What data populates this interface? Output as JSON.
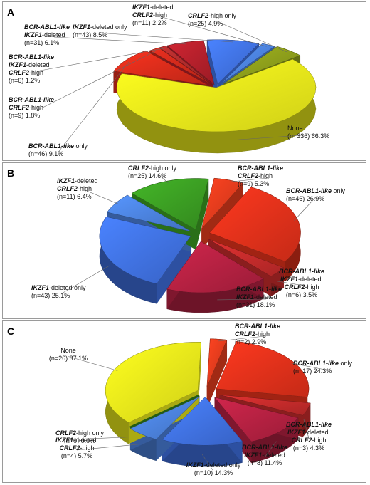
{
  "chart_data": [
    {
      "panel": "A",
      "type": "pie",
      "slices": [
        {
          "label": "None",
          "n": "(n=336)",
          "pct": "66.3%",
          "value": 66.3,
          "color": "#ecec1a"
        },
        {
          "label": "BCR-ABL1-like only",
          "n": "(n=46)",
          "pct": "9.1%",
          "value": 9.1,
          "color": "#d42b1a"
        },
        {
          "label": "BCR-ABL1-like CRLF2-high",
          "n": "(n=9)",
          "pct": "1.8%",
          "value": 1.8,
          "color": "#c8281a"
        },
        {
          "label": "BCR-ABL1-like IKZF1-deleted CRLF2-high",
          "n": "(n=6)",
          "pct": "1.2%",
          "value": 1.2,
          "color": "#a82a2a"
        },
        {
          "label": "BCR-ABL1-like IKZF1-deleted",
          "n": "(n=31)",
          "pct": "6.1%",
          "value": 6.1,
          "color": "#b01f2a"
        },
        {
          "label": "IKZF1-deleted only",
          "n": "(n=43)",
          "pct": "8.5%",
          "value": 8.5,
          "color": "#3f6fe0"
        },
        {
          "label": "IKZF1-deleted CRLF2-high",
          "n": "(n=11)",
          "pct": "2.2%",
          "value": 2.2,
          "color": "#4a7fd8"
        },
        {
          "label": "CRLF2-high only",
          "n": "(n=25)",
          "pct": "4.9%",
          "value": 4.9,
          "color": "#8a9a1a"
        }
      ]
    },
    {
      "panel": "B",
      "type": "pie",
      "slices": [
        {
          "label": "BCR-ABL1-like CRLF2-high",
          "n": "(n=9)",
          "pct": "5.3%",
          "value": 5.3,
          "color": "#e03a1c"
        },
        {
          "label": "BCR-ABL1-like only",
          "n": "(n=46)",
          "pct": "26.9%",
          "value": 26.9,
          "color": "#e0301a"
        },
        {
          "label": "BCR-ABL1-like IKZF1-deleted CRLF2-high",
          "n": "(n=6)",
          "pct": "3.5%",
          "value": 3.5,
          "color": "#c02a2a"
        },
        {
          "label": "BCR-ABL1-like IKZF1-deleted",
          "n": "(n=31)",
          "pct": "18.1%",
          "value": 18.1,
          "color": "#b02040"
        },
        {
          "label": "IKZF1-deleted only",
          "n": "(n=43)",
          "pct": "25.1%",
          "value": 25.1,
          "color": "#3f6fe0"
        },
        {
          "label": "IKZF1-deleted CRLF2-high",
          "n": "(n=11)",
          "pct": "6.4%",
          "value": 6.4,
          "color": "#4a7fd8"
        },
        {
          "label": "CRLF2-high only",
          "n": "(n=25)",
          "pct": "14.6%",
          "value": 14.6,
          "color": "#3a9a22"
        }
      ]
    },
    {
      "panel": "C",
      "type": "pie",
      "slices": [
        {
          "label": "BCR-ABL1-like CRLF2-high",
          "n": "(n=2)",
          "pct": "2.9%",
          "value": 2.9,
          "color": "#e03a1c"
        },
        {
          "label": "BCR-ABL1-like only",
          "n": "(n=17)",
          "pct": "24.3%",
          "value": 24.3,
          "color": "#e0301a"
        },
        {
          "label": "BCR-ABL1-like IKZF1-deleted CRLF2-high",
          "n": "(n=3)",
          "pct": "4.3%",
          "value": 4.3,
          "color": "#c02a2a"
        },
        {
          "label": "BCR-ABL1-like IKZF1-deleted",
          "n": "(n=8)",
          "pct": "11.4%",
          "value": 11.4,
          "color": "#b02040"
        },
        {
          "label": "IKZF1-deleted only",
          "n": "(n=10)",
          "pct": "14.3%",
          "value": 14.3,
          "color": "#3f6fe0"
        },
        {
          "label": "IKZF1-deleted CRLF2-high",
          "n": "(n=4)",
          "pct": "5.7%",
          "value": 5.7,
          "color": "#4a7fd8"
        },
        {
          "label": "CRLF2-high only",
          "n": "(n=0)",
          "pct": "0.0%",
          "value": 0.0,
          "color": "#3a9a22"
        },
        {
          "label": "None",
          "n": "(n=26)",
          "pct": "37.1%",
          "value": 37.1,
          "color": "#ecec1a"
        }
      ]
    }
  ]
}
